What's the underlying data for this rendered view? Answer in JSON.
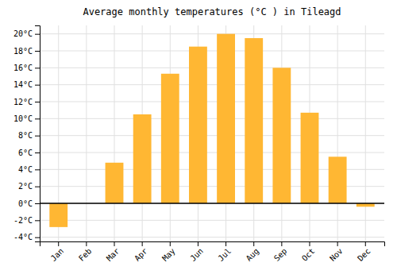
{
  "chart_data": {
    "type": "bar",
    "title": "Average monthly temperatures (°C ) in Tileagd",
    "categories": [
      "Jan",
      "Feb",
      "Mar",
      "Apr",
      "May",
      "Jun",
      "Jul",
      "Aug",
      "Sep",
      "Oct",
      "Nov",
      "Dec"
    ],
    "values": [
      -2.8,
      0.0,
      4.8,
      10.5,
      15.3,
      18.5,
      20.0,
      19.5,
      16.0,
      10.7,
      5.5,
      -0.4
    ],
    "color": "#FFB733",
    "ylim": [
      -4.5,
      21
    ],
    "yticks": [
      {
        "value": -4,
        "label": "-4°C"
      },
      {
        "value": -2,
        "label": "-2°C"
      },
      {
        "value": 0,
        "label": "0°C"
      },
      {
        "value": 2,
        "label": "2°C"
      },
      {
        "value": 4,
        "label": "4°C"
      },
      {
        "value": 6,
        "label": "6°C"
      },
      {
        "value": 8,
        "label": "8°C"
      },
      {
        "value": 10,
        "label": "10°C"
      },
      {
        "value": 12,
        "label": "12°C"
      },
      {
        "value": 14,
        "label": "14°C"
      },
      {
        "value": 16,
        "label": "16°C"
      },
      {
        "value": 18,
        "label": "18°C"
      },
      {
        "value": 20,
        "label": "20°C"
      }
    ],
    "grid": true
  }
}
